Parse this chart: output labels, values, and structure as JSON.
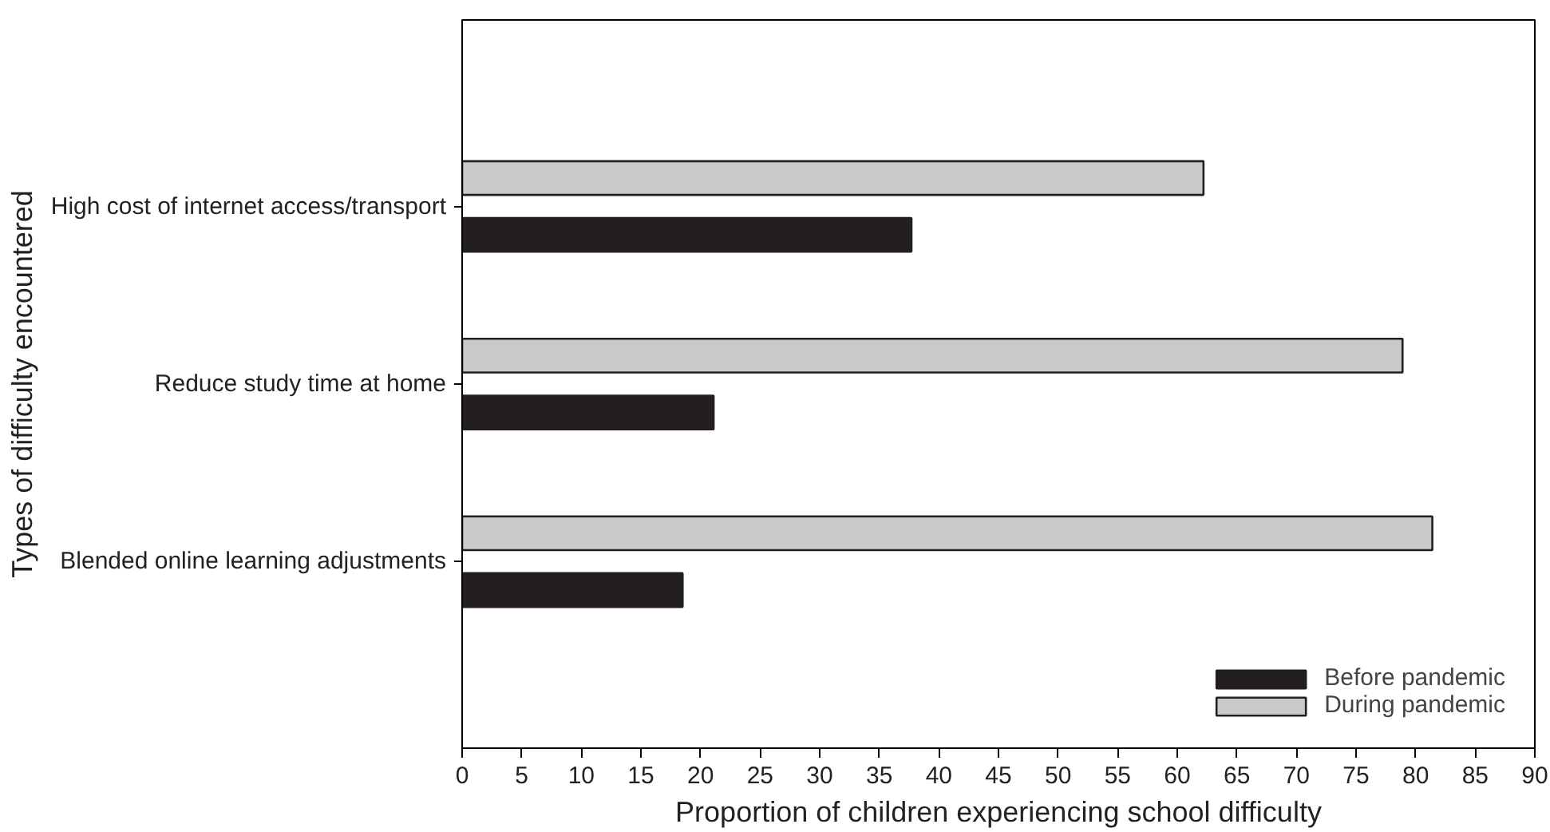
{
  "chart_data": {
    "type": "bar",
    "orientation": "horizontal",
    "xlabel": "Proportion of children experiencing school difficulty",
    "ylabel": "Types of difficulty encountered",
    "categories": [
      "High cost of internet access/transport",
      "Reduce study time at home",
      "Blended online learning adjustments"
    ],
    "series": [
      {
        "name": "Before pandemic",
        "color": "#231f20",
        "values": [
          37.7,
          21.1,
          18.5
        ]
      },
      {
        "name": "During pandemic",
        "color": "#c8c9cb",
        "values": [
          62.2,
          78.9,
          81.4
        ]
      }
    ],
    "xlim": [
      0,
      90
    ],
    "xticks": [
      0,
      5,
      10,
      15,
      20,
      25,
      30,
      35,
      40,
      45,
      50,
      55,
      60,
      65,
      70,
      75,
      80,
      85,
      90
    ],
    "grid": false,
    "legend": "bottom right"
  }
}
